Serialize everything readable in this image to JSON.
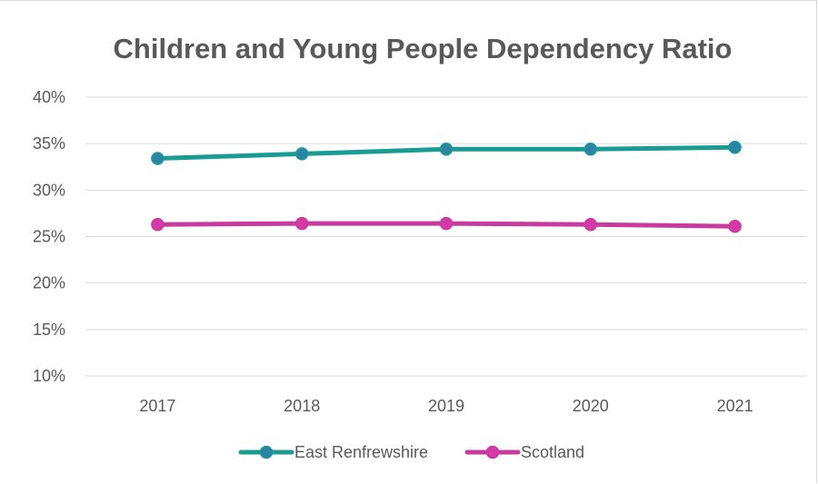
{
  "chart_data": {
    "type": "line",
    "title": "Children and Young People Dependency Ratio",
    "xlabel": "",
    "ylabel": "",
    "categories": [
      "2017",
      "2018",
      "2019",
      "2020",
      "2021"
    ],
    "ylim": [
      0.1,
      0.4
    ],
    "yticks": [
      0.1,
      0.15,
      0.2,
      0.25,
      0.3,
      0.35,
      0.4
    ],
    "ytick_labels": [
      "10%",
      "15%",
      "20%",
      "25%",
      "30%",
      "35%",
      "40%"
    ],
    "grid": true,
    "legend_position": "bottom",
    "series": [
      {
        "name": "East Renfrewshire",
        "color": "#1a9b94",
        "marker_color": "#2e82a6",
        "values": [
          0.334,
          0.339,
          0.344,
          0.344,
          0.346
        ]
      },
      {
        "name": "Scotland",
        "color": "#c93a9e",
        "marker_color": "#d43aa6",
        "values": [
          0.263,
          0.264,
          0.264,
          0.263,
          0.261
        ]
      }
    ]
  }
}
